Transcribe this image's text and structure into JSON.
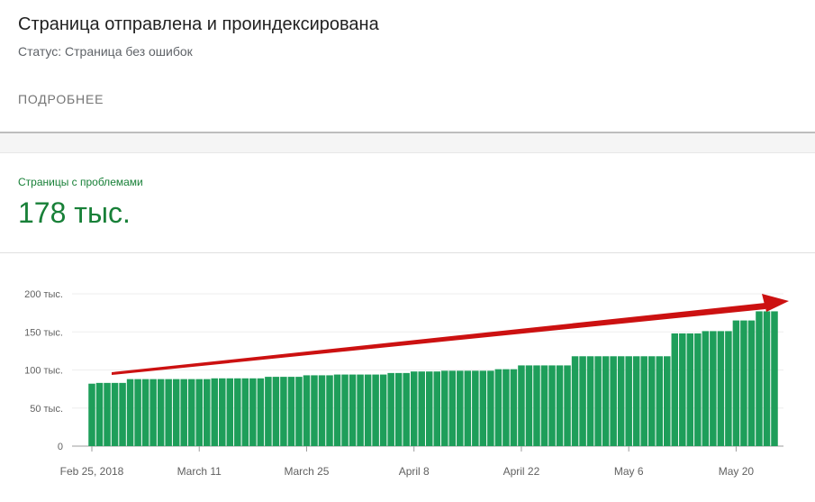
{
  "header": {
    "title": "Страница отправлена и проиндексирована",
    "status": "Статус: Страница без ошибок",
    "details_link": "ПОДРОБНЕЕ"
  },
  "metric": {
    "label": "Страницы с проблемами",
    "value": "178 тыс."
  },
  "colors": {
    "bar": "#1e9e5a",
    "metric_text": "#188038",
    "trend_arrow": "#cc1111"
  },
  "chart_data": {
    "type": "bar",
    "title": "",
    "xlabel": "",
    "ylabel": "",
    "ylim": [
      0,
      200000
    ],
    "grid": true,
    "y_ticks": [
      {
        "value": 0,
        "label": "0"
      },
      {
        "value": 50000,
        "label": "50 тыс."
      },
      {
        "value": 100000,
        "label": "100 тыс."
      },
      {
        "value": 150000,
        "label": "150 тыс."
      },
      {
        "value": 200000,
        "label": "200 тыс."
      }
    ],
    "x_ticks": [
      {
        "index": 0,
        "label": "Feb 25, 2018"
      },
      {
        "index": 14,
        "label": "March 11"
      },
      {
        "index": 28,
        "label": "March 25"
      },
      {
        "index": 42,
        "label": "April 8"
      },
      {
        "index": 56,
        "label": "April 22"
      },
      {
        "index": 70,
        "label": "May 6"
      },
      {
        "index": 84,
        "label": "May 20"
      }
    ],
    "values": [
      82000,
      83000,
      83000,
      83000,
      83000,
      88000,
      88000,
      88000,
      88000,
      88000,
      88000,
      88000,
      88000,
      88000,
      88000,
      88000,
      89000,
      89000,
      89000,
      89000,
      89000,
      89000,
      89000,
      91000,
      91000,
      91000,
      91000,
      91000,
      93000,
      93000,
      93000,
      93000,
      94000,
      94000,
      94000,
      94000,
      94000,
      94000,
      94000,
      96000,
      96000,
      96000,
      98000,
      98000,
      98000,
      98000,
      99000,
      99000,
      99000,
      99000,
      99000,
      99000,
      99000,
      101000,
      101000,
      101000,
      106000,
      106000,
      106000,
      106000,
      106000,
      106000,
      106000,
      118000,
      118000,
      118000,
      118000,
      118000,
      118000,
      118000,
      118000,
      118000,
      118000,
      118000,
      118000,
      118000,
      148000,
      148000,
      148000,
      148000,
      151000,
      151000,
      151000,
      151000,
      165000,
      165000,
      165000,
      177000,
      177000,
      177000
    ]
  }
}
